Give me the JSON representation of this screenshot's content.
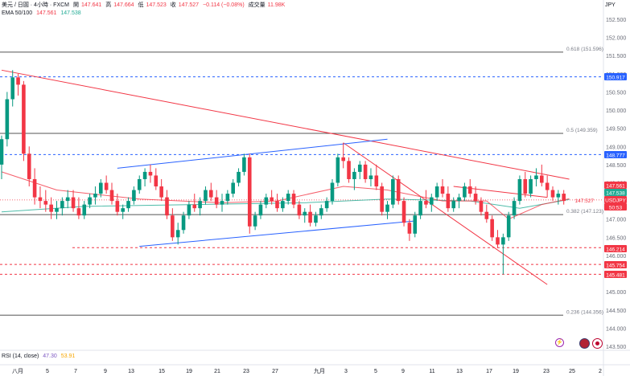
{
  "header": {
    "symbol": "美元 / 日圓 · 4小時 · FXCM",
    "open_label": "開",
    "open": "147.641",
    "high_label": "高",
    "high": "147.664",
    "low_label": "低",
    "low": "147.523",
    "close_label": "收",
    "close": "147.527",
    "change": "−0.114 (−0.08%)",
    "volume_label": "成交量",
    "volume": "11.98K",
    "ema_label": "EMA 50/100",
    "ema50": "147.561",
    "ema100": "147.538",
    "currency": "JPY"
  },
  "rsi": {
    "label": "RSI (14, close)",
    "v1": "47.30",
    "v2": "53.91"
  },
  "icons": [
    "lightning-icon",
    "us-flag-icon",
    "japan-flag-icon"
  ],
  "colors": {
    "up": "#089981",
    "down": "#f23645",
    "ema50": "#f23645",
    "ema100": "#22ab94",
    "channel": "#2962ff",
    "trend": "#f23645"
  },
  "chart_data": {
    "type": "candlestick",
    "y_axis_ticks": [
      "152.500",
      "152.000",
      "151.500",
      "151.000",
      "150.500",
      "150.000",
      "149.500",
      "149.000",
      "148.500",
      "148.000",
      "147.500",
      "147.000",
      "146.500",
      "146.000",
      "145.500",
      "145.000",
      "144.500",
      "144.000",
      "143.500"
    ],
    "x_axis_ticks": [
      "八月",
      "5",
      "7",
      "9",
      "13",
      "15",
      "19",
      "21",
      "23",
      "27",
      "九月",
      "3",
      "5",
      "9",
      "11",
      "13",
      "17",
      "19",
      "23",
      "25",
      "2"
    ],
    "fib_levels": [
      {
        "label": "0.618 (151.596)",
        "value": 151.596
      },
      {
        "label": "0.5 (149.359)",
        "value": 149.359
      },
      {
        "label": "0.382 (147.123)",
        "value": 147.123
      },
      {
        "label": "0.236 (144.356)",
        "value": 144.356
      }
    ],
    "price_tags": [
      {
        "text": "150.917",
        "value": 150.917,
        "color": "#2962ff"
      },
      {
        "text": "148.777",
        "value": 148.777,
        "color": "#2962ff"
      },
      {
        "text": "147.561",
        "value": 147.561,
        "color": "#f23645"
      },
      {
        "text": "147.538",
        "value": 147.538,
        "color": "#22ab94"
      },
      {
        "text": "USDJPY",
        "value": 147.527,
        "color": "#f23645"
      },
      {
        "text": "147.527",
        "value": 147.527,
        "color": "#f23645"
      },
      {
        "text": "50:53",
        "value": 147.527,
        "color": "#f23645"
      },
      {
        "text": "146.214",
        "value": 146.214,
        "color": "#f23645"
      },
      {
        "text": "145.754",
        "value": 145.754,
        "color": "#f23645"
      },
      {
        "text": "145.481",
        "value": 145.481,
        "color": "#f23645"
      }
    ],
    "ohlc": [
      [
        148.5,
        149.3,
        148.1,
        149.2
      ],
      [
        149.2,
        150.5,
        149.0,
        150.3
      ],
      [
        150.3,
        151.1,
        150.1,
        150.9
      ],
      [
        150.9,
        151.0,
        150.4,
        150.7
      ],
      [
        150.7,
        150.8,
        148.6,
        148.8
      ],
      [
        148.8,
        149.0,
        147.9,
        148.1
      ],
      [
        148.1,
        148.4,
        147.4,
        147.6
      ],
      [
        147.6,
        147.9,
        147.3,
        147.5
      ],
      [
        147.5,
        147.8,
        147.2,
        147.4
      ],
      [
        147.4,
        147.6,
        147.0,
        147.2
      ],
      [
        147.2,
        147.5,
        147.0,
        147.3
      ],
      [
        147.3,
        147.6,
        147.1,
        147.5
      ],
      [
        147.5,
        147.8,
        147.3,
        147.6
      ],
      [
        147.6,
        147.8,
        147.2,
        147.3
      ],
      [
        147.3,
        147.6,
        147.0,
        147.1
      ],
      [
        147.1,
        147.5,
        147.0,
        147.4
      ],
      [
        147.4,
        147.7,
        147.3,
        147.6
      ],
      [
        147.6,
        147.9,
        147.4,
        147.7
      ],
      [
        147.7,
        148.1,
        147.6,
        148.0
      ],
      [
        148.0,
        148.2,
        147.7,
        147.8
      ],
      [
        147.8,
        148.0,
        147.4,
        147.5
      ],
      [
        147.5,
        147.7,
        147.1,
        147.2
      ],
      [
        147.2,
        147.4,
        147.0,
        147.3
      ],
      [
        147.3,
        147.6,
        147.2,
        147.5
      ],
      [
        147.5,
        147.9,
        147.4,
        147.8
      ],
      [
        147.8,
        148.2,
        147.7,
        148.1
      ],
      [
        148.1,
        148.4,
        147.9,
        148.3
      ],
      [
        148.3,
        148.5,
        148.0,
        148.2
      ],
      [
        148.2,
        148.4,
        147.8,
        147.9
      ],
      [
        147.9,
        148.1,
        147.5,
        147.6
      ],
      [
        147.6,
        147.8,
        147.0,
        147.1
      ],
      [
        147.1,
        147.3,
        146.4,
        146.5
      ],
      [
        146.5,
        146.9,
        146.3,
        146.7
      ],
      [
        146.7,
        147.2,
        146.6,
        147.1
      ],
      [
        147.1,
        147.5,
        147.0,
        147.4
      ],
      [
        147.4,
        147.7,
        147.2,
        147.3
      ],
      [
        147.3,
        147.6,
        147.1,
        147.5
      ],
      [
        147.5,
        147.9,
        147.4,
        147.8
      ],
      [
        147.8,
        148.0,
        147.5,
        147.6
      ],
      [
        147.6,
        147.8,
        147.3,
        147.4
      ],
      [
        147.4,
        147.7,
        147.2,
        147.5
      ],
      [
        147.5,
        147.8,
        147.4,
        147.7
      ],
      [
        147.7,
        148.1,
        147.6,
        148.0
      ],
      [
        148.0,
        148.4,
        147.9,
        148.3
      ],
      [
        148.3,
        148.8,
        148.2,
        148.7
      ],
      [
        148.7,
        148.8,
        146.6,
        146.8
      ],
      [
        146.8,
        147.2,
        146.7,
        147.1
      ],
      [
        147.1,
        147.5,
        147.0,
        147.4
      ],
      [
        147.4,
        147.7,
        147.3,
        147.6
      ],
      [
        147.6,
        147.8,
        147.4,
        147.5
      ],
      [
        147.5,
        147.7,
        147.2,
        147.3
      ],
      [
        147.3,
        147.6,
        147.2,
        147.5
      ],
      [
        147.5,
        147.8,
        147.4,
        147.7
      ],
      [
        147.7,
        147.8,
        147.3,
        147.4
      ],
      [
        147.4,
        147.5,
        147.0,
        147.1
      ],
      [
        147.1,
        147.3,
        146.9,
        147.2
      ],
      [
        147.2,
        147.4,
        146.8,
        146.9
      ],
      [
        146.9,
        147.2,
        146.8,
        147.1
      ],
      [
        147.1,
        147.4,
        147.0,
        147.3
      ],
      [
        147.3,
        147.6,
        147.2,
        147.5
      ],
      [
        147.5,
        148.1,
        147.4,
        148.0
      ],
      [
        148.0,
        148.8,
        147.9,
        148.7
      ],
      [
        148.7,
        149.1,
        148.4,
        148.6
      ],
      [
        148.6,
        148.7,
        148.0,
        148.1
      ],
      [
        148.1,
        148.4,
        147.8,
        148.3
      ],
      [
        148.3,
        148.6,
        148.1,
        148.5
      ],
      [
        148.5,
        148.6,
        148.0,
        148.1
      ],
      [
        148.1,
        148.4,
        147.9,
        148.2
      ],
      [
        148.2,
        148.5,
        147.8,
        147.9
      ],
      [
        147.9,
        148.0,
        147.1,
        147.2
      ],
      [
        147.2,
        147.5,
        147.0,
        147.4
      ],
      [
        147.4,
        148.2,
        147.3,
        148.1
      ],
      [
        148.1,
        148.2,
        147.4,
        147.5
      ],
      [
        147.5,
        147.6,
        146.8,
        146.9
      ],
      [
        146.9,
        147.0,
        146.4,
        146.6
      ],
      [
        146.6,
        147.2,
        146.5,
        147.1
      ],
      [
        147.1,
        147.6,
        147.0,
        147.5
      ],
      [
        147.5,
        147.8,
        147.3,
        147.4
      ],
      [
        147.4,
        147.7,
        147.2,
        147.6
      ],
      [
        147.6,
        148.0,
        147.5,
        147.9
      ],
      [
        147.9,
        148.1,
        147.6,
        147.7
      ],
      [
        147.7,
        147.9,
        147.2,
        147.3
      ],
      [
        147.3,
        147.6,
        147.2,
        147.5
      ],
      [
        147.5,
        147.7,
        147.3,
        147.6
      ],
      [
        147.6,
        148.0,
        147.5,
        147.9
      ],
      [
        147.9,
        148.1,
        147.6,
        147.7
      ],
      [
        147.7,
        147.9,
        147.4,
        147.5
      ],
      [
        147.5,
        147.6,
        147.1,
        147.2
      ],
      [
        147.2,
        147.4,
        146.9,
        147.0
      ],
      [
        147.0,
        147.1,
        146.4,
        146.5
      ],
      [
        146.5,
        146.7,
        146.2,
        146.3
      ],
      [
        146.3,
        146.6,
        145.48,
        146.5
      ],
      [
        146.5,
        147.2,
        146.4,
        147.1
      ],
      [
        147.1,
        147.6,
        147.0,
        147.5
      ],
      [
        147.5,
        148.2,
        147.4,
        148.1
      ],
      [
        148.1,
        148.3,
        147.6,
        147.7
      ],
      [
        147.7,
        148.2,
        147.6,
        148.1
      ],
      [
        148.1,
        148.4,
        147.9,
        148.2
      ],
      [
        148.2,
        148.5,
        147.9,
        148.0
      ],
      [
        148.0,
        148.2,
        147.6,
        147.8
      ],
      [
        147.8,
        147.9,
        147.5,
        147.6
      ],
      [
        147.6,
        147.8,
        147.4,
        147.7
      ],
      [
        147.7,
        147.8,
        147.4,
        147.5
      ]
    ],
    "ema50": [
      [
        0,
        148.3
      ],
      [
        10,
        147.8
      ],
      [
        25,
        147.55
      ],
      [
        40,
        147.45
      ],
      [
        50,
        147.5
      ],
      [
        62,
        147.9
      ],
      [
        70,
        147.8
      ],
      [
        80,
        147.5
      ],
      [
        88,
        147.5
      ],
      [
        92,
        147.0
      ],
      [
        98,
        147.4
      ],
      [
        103,
        147.56
      ]
    ],
    "ema100": [
      [
        0,
        147.2
      ],
      [
        15,
        147.35
      ],
      [
        35,
        147.4
      ],
      [
        55,
        147.45
      ],
      [
        70,
        147.55
      ],
      [
        85,
        147.5
      ],
      [
        94,
        147.3
      ],
      [
        103,
        147.54
      ]
    ],
    "trendlines": [
      {
        "color": "#f23645",
        "from": [
          0,
          151.1
        ],
        "to": [
          103,
          148.1
        ]
      },
      {
        "color": "#f23645",
        "from": [
          62,
          149.1
        ],
        "to": [
          99,
          145.2
        ]
      },
      {
        "color": "#2962ff",
        "from": [
          21,
          148.4
        ],
        "to": [
          70,
          149.2
        ]
      },
      {
        "color": "#2962ff",
        "from": [
          25,
          146.25
        ],
        "to": [
          75,
          146.95
        ]
      },
      {
        "color": "#f23645",
        "from": [
          82,
          147.9
        ],
        "to": [
          99,
          147.6
        ]
      }
    ]
  }
}
